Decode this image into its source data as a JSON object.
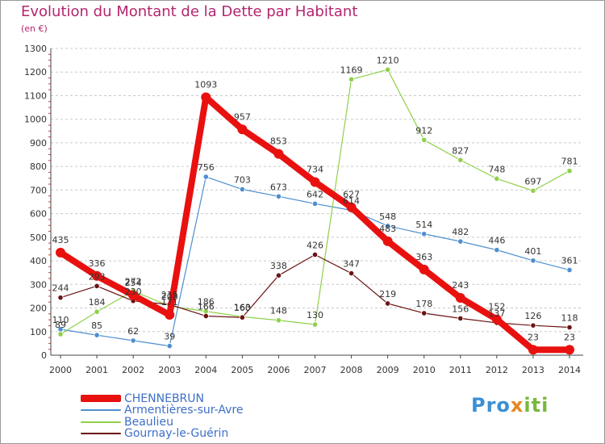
{
  "chart_data": {
    "type": "line",
    "title": "Evolution du Montant de la Dette par Habitant",
    "unit_label": "(en €)",
    "x": [
      "2000",
      "2001",
      "2002",
      "2003",
      "2004",
      "2005",
      "2006",
      "2007",
      "2008",
      "2009",
      "2010",
      "2011",
      "2012",
      "2013",
      "2014"
    ],
    "yticks": [
      "0",
      "100",
      "200",
      "300",
      "400",
      "500",
      "600",
      "700",
      "800",
      "900",
      "1000",
      "1100",
      "1200",
      "1300"
    ],
    "ylim": [
      0,
      1300
    ],
    "grid": "horizontal",
    "series": [
      {
        "name": "CHENNEBRUN",
        "color": "#e8110f",
        "emphasis": true,
        "values": [
          435,
          336,
          254,
          171,
          1093,
          957,
          853,
          734,
          627,
          483,
          363,
          243,
          152,
          23,
          23
        ],
        "labels": [
          "435",
          "336",
          "254",
          "171",
          "1093",
          "957",
          "853",
          "734",
          "627",
          "483",
          "363",
          "243",
          "152",
          "23",
          "23"
        ]
      },
      {
        "name": "Armentières-sur-Avre",
        "color": "#4d8fd0",
        "emphasis": false,
        "values": [
          110,
          85,
          62,
          39,
          756,
          703,
          673,
          642,
          614,
          548,
          514,
          482,
          446,
          401,
          361
        ],
        "labels": [
          "110",
          "85",
          "62",
          "39",
          "756",
          "703",
          "673",
          "642",
          "614",
          "548",
          "514",
          "482",
          "446",
          "401",
          "361"
        ]
      },
      {
        "name": "Beaulieu",
        "color": "#8fd04a",
        "emphasis": false,
        "values": [
          89,
          184,
          272,
          208,
          186,
          163,
          148,
          130,
          1169,
          1210,
          912,
          827,
          748,
          697,
          781
        ],
        "labels": [
          "89",
          "184",
          "272",
          "208",
          "186",
          "163",
          "148",
          "130",
          "1169",
          "1210",
          "912",
          "827",
          "748",
          "697",
          "781"
        ]
      },
      {
        "name": "Gournay-le-Guérin",
        "color": "#6b1414",
        "emphasis": false,
        "values": [
          244,
          293,
          230,
          215,
          166,
          160,
          338,
          426,
          347,
          219,
          178,
          156,
          137,
          126,
          118
        ],
        "labels": [
          "244",
          "293",
          "230",
          "215",
          "166",
          "160",
          "338",
          "426",
          "347",
          "219",
          "178",
          "156",
          "137",
          "126",
          "118"
        ]
      }
    ]
  },
  "brand": {
    "part1": "Pro",
    "part2": "x",
    "part3": "iti"
  }
}
